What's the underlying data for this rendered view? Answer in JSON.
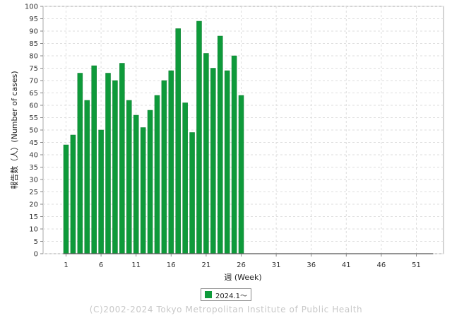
{
  "chart_data": {
    "type": "bar",
    "xlabel": "週 (Week)",
    "ylabel": "報告数（人）(Number of cases)",
    "ylim": [
      0,
      100
    ],
    "y_ticks": [
      0,
      5,
      10,
      15,
      20,
      25,
      30,
      35,
      40,
      45,
      50,
      55,
      60,
      65,
      70,
      75,
      80,
      85,
      90,
      95,
      100
    ],
    "xlim": [
      1,
      53
    ],
    "x_ticks": [
      1,
      6,
      11,
      16,
      21,
      26,
      31,
      36,
      41,
      46,
      51
    ],
    "grid": true,
    "legend_position": "bottom-center",
    "series": [
      {
        "name": "2024.1～",
        "color": "#0e9a3a",
        "x": [
          1,
          2,
          3,
          4,
          5,
          6,
          7,
          8,
          9,
          10,
          11,
          12,
          13,
          14,
          15,
          16,
          17,
          18,
          19,
          20,
          21,
          22,
          23,
          24,
          25,
          26
        ],
        "values": [
          44,
          48,
          73,
          62,
          76,
          50,
          73,
          70,
          77,
          62,
          56,
          51,
          58,
          64,
          70,
          74,
          91,
          61,
          49,
          94,
          81,
          75,
          88,
          74,
          80,
          64
        ]
      }
    ]
  },
  "footer": "(C)2002-2024 Tokyo Metropolitan Institute of Public Health"
}
